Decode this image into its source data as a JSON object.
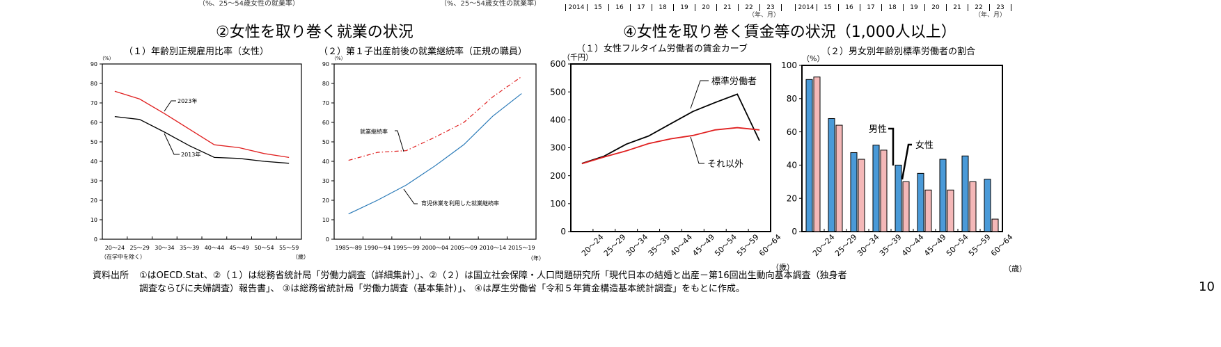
{
  "top_strip": {
    "left_note": "（%、25～54歳女性の就業率）",
    "right_note": "（%、25～54歳女性の就業率）",
    "years": [
      "2014",
      "15",
      "16",
      "17",
      "18",
      "19",
      "20",
      "21",
      "22",
      "23"
    ],
    "unit": "（年、月）"
  },
  "section2": {
    "title": "②女性を取り巻く就業の状況"
  },
  "section4": {
    "title": "④女性を取り巻く賃金等の状況（1,000人以上）"
  },
  "chart_data": [
    {
      "type": "line",
      "title": "（１）年齢別正規雇用比率（女性）",
      "ylabel": "（%）",
      "xlabel": "（歳）",
      "x_note": "（在学中を除く）",
      "categories": [
        "20～24",
        "25～29",
        "30～34",
        "35～39",
        "40～44",
        "45～49",
        "50～54",
        "55～59"
      ],
      "ylim": [
        0,
        90
      ],
      "yticks": [
        0,
        10,
        20,
        30,
        40,
        50,
        60,
        70,
        80,
        90
      ],
      "grid": false,
      "series": [
        {
          "name": "2023年",
          "color": "#e02020",
          "values": [
            76,
            72,
            64.5,
            56.5,
            48.5,
            47,
            44,
            42
          ]
        },
        {
          "name": "2013年",
          "color": "#000000",
          "values": [
            63,
            61.5,
            55,
            48,
            42,
            41.5,
            40,
            39
          ]
        }
      ]
    },
    {
      "type": "line",
      "title": "（２）第１子出産前後の就業継続率（正規の職員）",
      "ylabel": "（%）",
      "xlabel": "（年）",
      "categories": [
        "1985～89",
        "1990～94",
        "1995～99",
        "2000～04",
        "2005～09",
        "2010～14",
        "2015～19"
      ],
      "ylim": [
        0,
        90
      ],
      "yticks": [
        0,
        10,
        20,
        30,
        40,
        50,
        60,
        70,
        80,
        90
      ],
      "grid": false,
      "series": [
        {
          "name": "就業継続率",
          "color": "#e02020",
          "dash": "dashdot",
          "values": [
            40.5,
            44.6,
            45.5,
            52.4,
            60,
            73.1,
            83.5
          ]
        },
        {
          "name": "育児休業を利用した就業継続率",
          "color": "#2a7ab8",
          "values": [
            13,
            20,
            27.8,
            37.7,
            48.6,
            63.2,
            74.8
          ]
        }
      ]
    },
    {
      "type": "line",
      "title": "（１）女性フルタイム労働者の賃金カーブ",
      "ylabel": "（千円）",
      "xlabel": "（歳）",
      "categories": [
        "20～24",
        "25～29",
        "30～34",
        "35～39",
        "40～44",
        "45～49",
        "50～54",
        "55～59",
        "60～64"
      ],
      "ylim": [
        0,
        600
      ],
      "yticks": [
        0,
        100,
        200,
        300,
        400,
        500,
        600
      ],
      "grid": false,
      "series": [
        {
          "name": "標準労働者",
          "color": "#000000",
          "values": [
            244,
            270,
            313,
            342,
            386,
            430,
            462,
            492,
            325
          ]
        },
        {
          "name": "それ以外",
          "color": "#e02020",
          "values": [
            243,
            267,
            289,
            315,
            332,
            344,
            364,
            372,
            364
          ]
        }
      ]
    },
    {
      "type": "bar",
      "title": "（２）男女別年齢別標準労働者の割合",
      "ylabel": "（%）",
      "xlabel": "（歳）",
      "categories": [
        "20～24",
        "25～29",
        "30～34",
        "35～39",
        "40～44",
        "45～49",
        "50～54",
        "55～59",
        "60～64"
      ],
      "ylim": [
        0,
        100
      ],
      "yticks": [
        0,
        20,
        40,
        60,
        80,
        100
      ],
      "grid": false,
      "series": [
        {
          "name": "男性",
          "color": "#4a9ad8",
          "values": [
            91.5,
            68,
            47.5,
            52,
            40,
            35,
            43.5,
            45.5,
            31.5
          ]
        },
        {
          "name": "女性",
          "color": "#f4b8b8",
          "values": [
            93,
            64,
            43.5,
            49,
            30,
            25,
            25,
            30,
            7.5
          ]
        }
      ]
    }
  ],
  "footer": {
    "label": "資料出所",
    "line1": "①はOECD.Stat、②（１）は総務省統計局「労働力調査（詳細集計）」、②（２）は国立社会保障・人口問題研究所「現代日本の結婚と出産－第16回出生動向基本調査（独身者",
    "line2": "調査ならびに夫婦調査）報告書」、 ③は総務省統計局「労働力調査（基本集計）」、 ④は厚生労働省「令和５年賃金構造基本統計調査」をもとに作成。",
    "page_number": "10"
  }
}
